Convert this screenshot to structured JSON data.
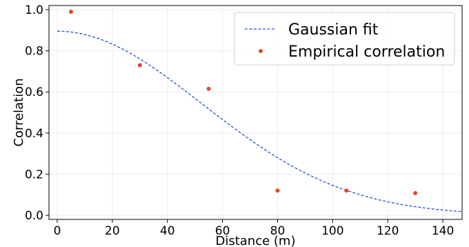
{
  "chart_data": {
    "type": "scatter",
    "title": "",
    "xlabel": "Distance (m)",
    "ylabel": "Correlation",
    "xlim": [
      -3,
      147
    ],
    "ylim": [
      -0.02,
      1.02
    ],
    "x_ticks": [
      0,
      20,
      40,
      60,
      80,
      100,
      120,
      140
    ],
    "y_ticks": [
      0.0,
      0.2,
      0.4,
      0.6,
      0.8,
      1.0
    ],
    "x_tick_labels": [
      "0",
      "20",
      "40",
      "60",
      "80",
      "100",
      "120",
      "140"
    ],
    "y_tick_labels": [
      "0.0",
      "0.2",
      "0.4",
      "0.6",
      "0.8",
      "1.0"
    ],
    "grid": true,
    "legend_position": "top-right",
    "series": [
      {
        "name": "Gaussian fit",
        "kind": "line",
        "style": "dashed",
        "color": "#1f4fe0",
        "model": "a*exp(-x^2/(2*s^2))",
        "params": {
          "a": 0.895,
          "s": 52.5
        },
        "x_range": [
          0,
          147
        ]
      },
      {
        "name": "Empirical correlation",
        "kind": "scatter",
        "color": "#e8452c",
        "x": [
          5,
          30,
          55,
          80,
          105,
          130
        ],
        "y": [
          0.99,
          0.73,
          0.615,
          0.12,
          0.12,
          0.108
        ]
      }
    ]
  }
}
